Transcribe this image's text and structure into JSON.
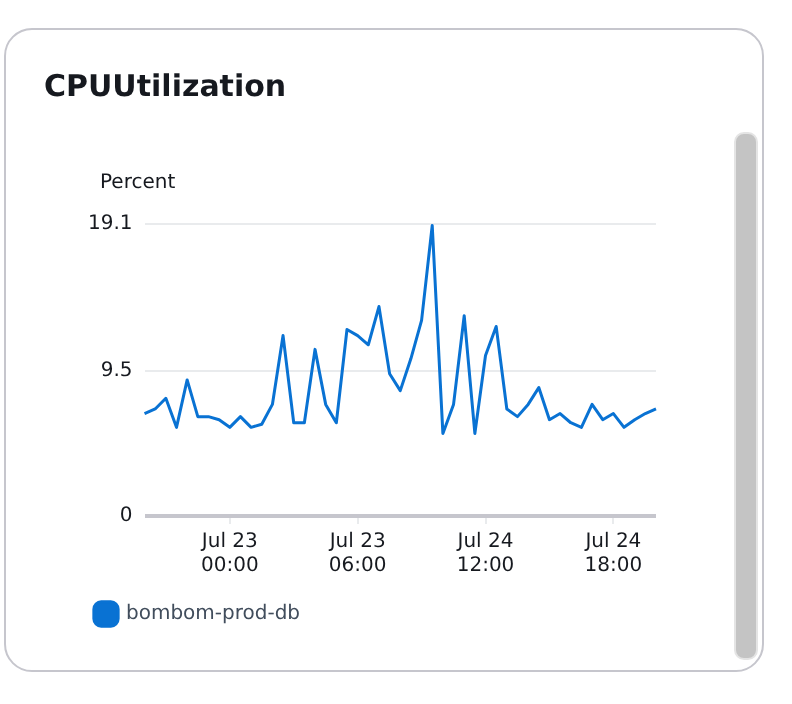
{
  "chart_data": {
    "type": "line",
    "title": "CPUUtilization",
    "ylabel": "Percent",
    "categories": [
      null,
      null,
      null,
      null,
      null,
      null,
      null,
      null,
      "Jul 23\n00:00",
      null,
      null,
      null,
      null,
      null,
      null,
      null,
      null,
      null,
      null,
      null,
      "Jul 23\n06:00",
      null,
      null,
      null,
      null,
      null,
      null,
      null,
      null,
      null,
      null,
      null,
      "Jul 24\n12:00",
      null,
      null,
      null,
      null,
      null,
      null,
      null,
      null,
      null,
      null,
      null,
      "Jul 24\n18:00",
      null,
      null,
      null,
      null
    ],
    "ylim": [
      0,
      19.1
    ],
    "yticks": [
      0,
      9.5,
      19.1
    ],
    "grid": "y",
    "legend": "bottom",
    "marker": "none",
    "line_style": "solid",
    "series": [
      {
        "name": "bombom-prod-db",
        "color": "#0972d3",
        "values": [
          6.7,
          7.0,
          7.7,
          5.8,
          8.9,
          6.5,
          6.5,
          6.3,
          5.8,
          6.5,
          5.8,
          6.0,
          7.3,
          11.8,
          6.1,
          6.1,
          10.9,
          7.3,
          6.1,
          12.2,
          11.8,
          11.2,
          13.7,
          9.3,
          8.2,
          10.3,
          12.8,
          19.0,
          5.4,
          7.3,
          13.1,
          5.4,
          10.5,
          12.4,
          7.0,
          6.5,
          7.3,
          8.4,
          6.3,
          6.7,
          6.1,
          5.8,
          7.3,
          6.3,
          6.7,
          5.8,
          6.3,
          6.7,
          7.0
        ]
      }
    ]
  }
}
